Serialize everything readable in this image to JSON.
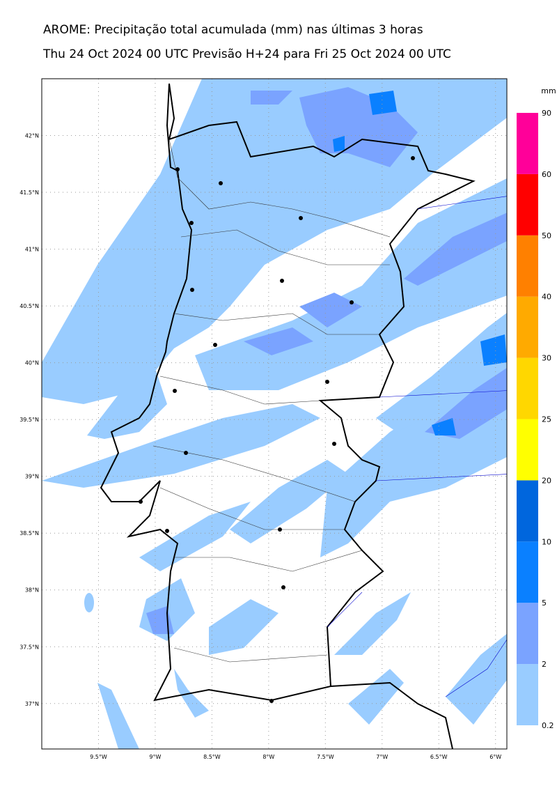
{
  "header": {
    "title": "AROME: Precipitação total acumulada (mm) nas últimas 3 horas",
    "subtitle": "Thu 24 Oct 2024 00 UTC Previsão H+24 para Fri 25 Oct 2024 00 UTC"
  },
  "map": {
    "lon_lim": [
      -10,
      -5.9
    ],
    "lat_lim": [
      36.6,
      42.5
    ],
    "lat_ticks": [
      {
        "value": 42,
        "label": "42°N"
      },
      {
        "value": 41.5,
        "label": "41.5°N"
      },
      {
        "value": 41,
        "label": "41°N"
      },
      {
        "value": 40.5,
        "label": "40.5°N"
      },
      {
        "value": 40,
        "label": "40°N"
      },
      {
        "value": 39.5,
        "label": "39.5°N"
      },
      {
        "value": 39,
        "label": "39°N"
      },
      {
        "value": 38.5,
        "label": "38.5°N"
      },
      {
        "value": 38,
        "label": "38°N"
      },
      {
        "value": 37.5,
        "label": "37.5°N"
      },
      {
        "value": 37,
        "label": "37°N"
      }
    ],
    "lon_ticks": [
      {
        "value": -9.5,
        "label": "9.5°W"
      },
      {
        "value": -9,
        "label": "9°W"
      },
      {
        "value": -8.5,
        "label": "8.5°W"
      },
      {
        "value": -8,
        "label": "8°W"
      },
      {
        "value": -7.5,
        "label": "7.5°W"
      },
      {
        "value": -7,
        "label": "7°W"
      },
      {
        "value": -6.5,
        "label": "6.5°W"
      },
      {
        "value": -6,
        "label": "6°W"
      }
    ],
    "colorbar": {
      "unit": "mm",
      "levels": [
        0.2,
        2,
        5,
        10,
        20,
        25,
        30,
        40,
        50,
        60,
        90
      ],
      "colors": [
        "#99ccff",
        "#7aa3ff",
        "#0a80ff",
        "#0066dd",
        "#ffff00",
        "#ffd700",
        "#ffaa00",
        "#ff8000",
        "#ff0000",
        "#ff0099"
      ]
    }
  }
}
